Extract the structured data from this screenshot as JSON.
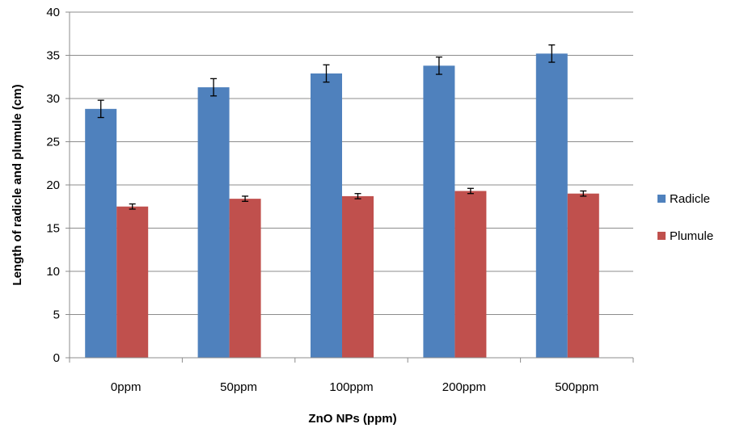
{
  "chart_data": {
    "type": "bar",
    "title": "",
    "xlabel": "ZnO NPs  (ppm)",
    "ylabel": "Length of radicle and plumule (cm)",
    "categories": [
      "0ppm",
      "50ppm",
      "100ppm",
      "200ppm",
      "500ppm"
    ],
    "ylim": [
      0,
      40
    ],
    "yticks": [
      0,
      5,
      10,
      15,
      20,
      25,
      30,
      35,
      40
    ],
    "grid": true,
    "legend_position": "right",
    "series": [
      {
        "name": "Radicle",
        "color": "#4f81bd",
        "values": [
          28.8,
          31.3,
          32.9,
          33.8,
          35.2
        ],
        "errors": [
          1.0,
          1.0,
          1.0,
          1.0,
          1.0
        ]
      },
      {
        "name": "Plumule",
        "color": "#c0504d",
        "values": [
          17.5,
          18.4,
          18.7,
          19.3,
          19.0
        ],
        "errors": [
          0.3,
          0.3,
          0.3,
          0.3,
          0.3
        ]
      }
    ]
  }
}
